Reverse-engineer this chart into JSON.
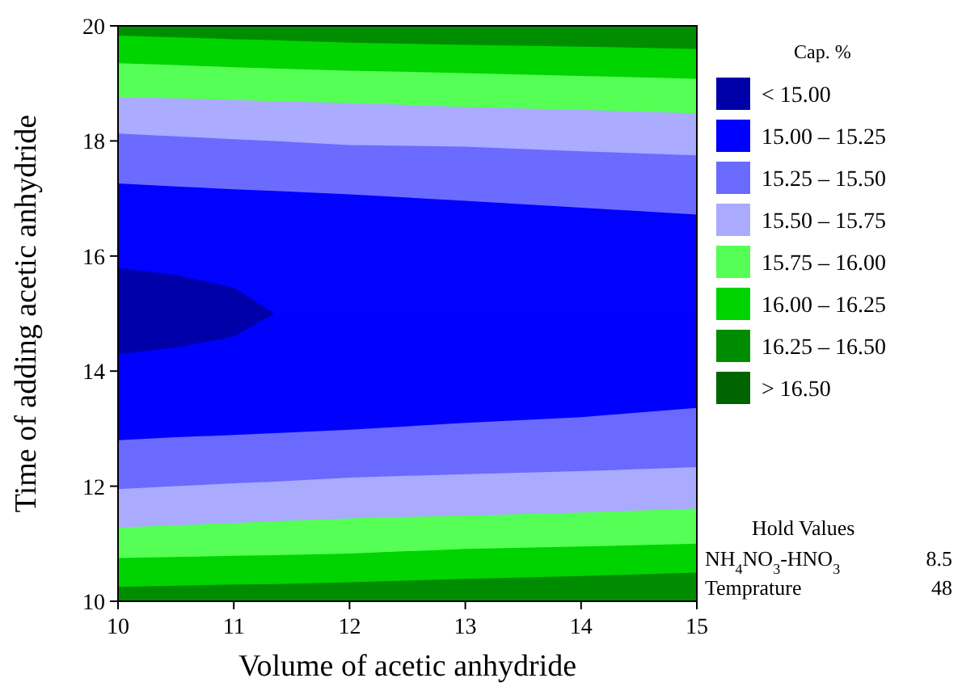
{
  "chart_data": {
    "type": "area",
    "xlabel": "Volume of acetic anhydride",
    "ylabel": "Time of adding acetic anhydride",
    "legend_title": "Cap. %",
    "legend": "right",
    "x": [
      10,
      10.5,
      11,
      11.35,
      12,
      13,
      14,
      15
    ],
    "xlim": [
      10,
      15
    ],
    "xticks": [
      10,
      11,
      12,
      13,
      14,
      15
    ],
    "ylim": [
      10,
      20
    ],
    "yticks": [
      10,
      12,
      14,
      16,
      18,
      20
    ],
    "series": [
      {
        "color": "#008d00",
        "values": [
          20,
          20,
          20,
          20,
          20,
          20,
          20,
          20
        ]
      },
      {
        "color": "#00d500",
        "values": [
          19.83,
          19.8,
          19.77,
          19.75,
          19.71,
          19.67,
          19.64,
          19.6
        ]
      },
      {
        "color": "#56ff56",
        "values": [
          19.35,
          19.32,
          19.28,
          19.26,
          19.22,
          19.18,
          19.13,
          19.08
        ]
      },
      {
        "color": "#ababff",
        "values": [
          18.76,
          18.74,
          18.71,
          18.69,
          18.66,
          18.59,
          18.54,
          18.48
        ]
      },
      {
        "color": "#6b6bff",
        "values": [
          18.13,
          18.08,
          18.03,
          18.0,
          17.93,
          17.9,
          17.82,
          17.75
        ]
      },
      {
        "color": "#0101ff",
        "values": [
          17.26,
          17.21,
          17.16,
          17.13,
          17.07,
          16.96,
          16.84,
          16.72
        ]
      },
      {
        "name": "< 15.00",
        "color": "#0000a8",
        "values": [
          15.79,
          15.67,
          15.45,
          15.0,
          null,
          null,
          null,
          null
        ]
      },
      {
        "name": "15.00 – 15.25",
        "color": "#0000ff",
        "values": [
          14.29,
          14.41,
          14.6,
          15.0,
          15.0,
          15.0,
          15.0,
          15.0
        ]
      },
      {
        "name": "15.25 – 15.50",
        "color": "#6a6aff",
        "values": [
          12.8,
          12.85,
          12.89,
          12.92,
          12.98,
          13.1,
          13.2,
          13.36
        ]
      },
      {
        "name": "15.50 – 15.75",
        "color": "#aaaaff",
        "values": [
          11.95,
          12.0,
          12.05,
          12.08,
          12.15,
          12.21,
          12.26,
          12.33
        ]
      },
      {
        "name": "15.75 – 16.00",
        "color": "#55ff55",
        "values": [
          11.28,
          11.32,
          11.36,
          11.39,
          11.44,
          11.49,
          11.54,
          11.61
        ]
      },
      {
        "name": "16.00 – 16.25",
        "color": "#00d400",
        "values": [
          10.75,
          10.77,
          10.79,
          10.8,
          10.83,
          10.91,
          10.95,
          11.0
        ]
      },
      {
        "name": "16.25 – 16.50",
        "color": "#008c00",
        "values": [
          10.25,
          10.27,
          10.29,
          10.3,
          10.33,
          10.39,
          10.44,
          10.5
        ]
      },
      {
        "name": "> 16.50",
        "color": "#006400",
        "values": [
          null,
          null,
          null,
          null,
          null,
          null,
          null,
          null
        ]
      }
    ],
    "annotations": [
      "Hold Values",
      "NH$_{4}$NO$_{3}$-HNO$_{3}$",
      "8.5",
      "Temprature",
      "48"
    ]
  }
}
